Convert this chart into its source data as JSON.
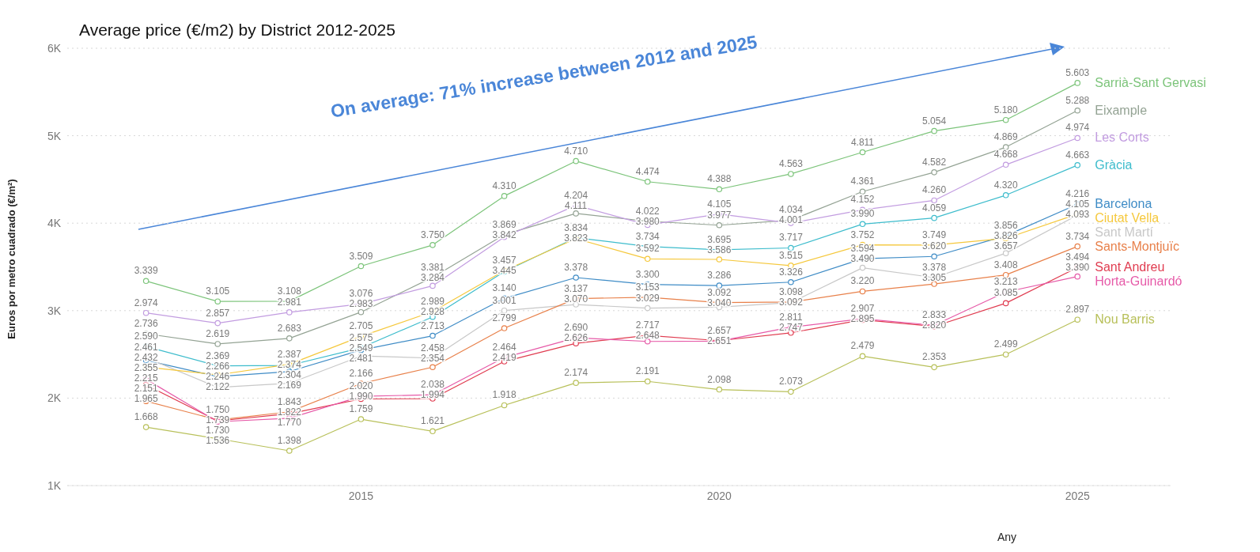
{
  "chart_data": {
    "type": "line",
    "title": "Average price (€/m2) by District 2012-2025",
    "xlabel": "Any",
    "ylabel": "Euros por metro cuadrado (€/m²)",
    "annotations": [
      "On average: 71% increase between 2012 and 2025"
    ],
    "x": [
      2012,
      2013,
      2014,
      2015,
      2016,
      2017,
      2018,
      2019,
      2020,
      2021,
      2022,
      2023,
      2024,
      2025
    ],
    "xlim": [
      2010.9,
      2026.3
    ],
    "xticks": [
      2015,
      2020,
      2025
    ],
    "ylim": [
      1000,
      6000
    ],
    "yticks": [
      {
        "value": 1000,
        "label": "1K"
      },
      {
        "value": 2000,
        "label": "2K"
      },
      {
        "value": 3000,
        "label": "3K"
      },
      {
        "value": 4000,
        "label": "4K"
      },
      {
        "value": 5000,
        "label": "5K"
      },
      {
        "value": 6000,
        "label": "6K"
      }
    ],
    "grid": "y",
    "marker": "circle",
    "line_style": "solid",
    "series": [
      {
        "name": "Sarrià-Sant Gervasi",
        "color": "#7cc47a",
        "values": [
          3339,
          3105,
          3108,
          3509,
          3750,
          4310,
          4710,
          4474,
          4388,
          4563,
          4811,
          5054,
          5180,
          5603
        ],
        "value_labels": [
          "3.339",
          "3.105",
          "3.108",
          "3.509",
          "3.750",
          "4.310",
          "4.710",
          "4.474",
          "4.388",
          "4.563",
          "4.811",
          "5.054",
          "5.180",
          "5.603"
        ]
      },
      {
        "name": "Eixample",
        "color": "#94a394",
        "values": [
          2736,
          2619,
          2683,
          2983,
          3381,
          3869,
          4111,
          4022,
          3977,
          4034,
          4361,
          4582,
          4869,
          5288
        ],
        "value_labels": [
          "2.736",
          "2.619",
          "2.683",
          "2.983",
          "3.381",
          "3.869",
          "4.111",
          "4.022",
          "3.977",
          "4.034",
          "4.361",
          "4.582",
          "4.869",
          "5.288"
        ]
      },
      {
        "name": "Les Corts",
        "color": "#c29ce0",
        "values": [
          2974,
          2857,
          2981,
          3076,
          3284,
          3842,
          4204,
          3980,
          4105,
          4001,
          4152,
          4260,
          4668,
          4974
        ],
        "value_labels": [
          "2.974",
          "2.857",
          "2.981",
          "3.076",
          "3.284",
          "3.842",
          "4.204",
          "3.980",
          "4.105",
          "4.001",
          "4.152",
          "4.260",
          "4.668",
          "4.974"
        ]
      },
      {
        "name": "Gràcia",
        "color": "#3dbccc",
        "values": [
          2590,
          2369,
          2374,
          2575,
          2928,
          3445,
          3834,
          3734,
          3695,
          3717,
          3990,
          4059,
          4320,
          4663
        ],
        "value_labels": [
          "2.590",
          "2.369",
          "2.374",
          "2.575",
          "2.928",
          "3.445",
          "3.834",
          "3.734",
          "3.695",
          "3.717",
          "3.990",
          "4.059",
          "4.320",
          "4.663"
        ]
      },
      {
        "name": "Barcelona",
        "color": "#3f8cc6",
        "values": [
          2432,
          2246,
          2304,
          2549,
          2713,
          3140,
          3378,
          3300,
          3286,
          3326,
          3594,
          3620,
          3856,
          4216
        ],
        "value_labels": [
          "2.432",
          "2.246",
          "2.304",
          "2.549",
          "2.713",
          "3.140",
          "3.378",
          "3.300",
          "3.286",
          "3.326",
          "3.594",
          "3.620",
          "3.856",
          "4.216"
        ]
      },
      {
        "name": "Sant Martí",
        "color": "#c8c8c8",
        "values": [
          2461,
          2122,
          2169,
          2481,
          2458,
          3001,
          3070,
          3029,
          3040,
          3092,
          3490,
          3378,
          3657,
          4093
        ],
        "value_labels": [
          "2.461",
          "2.122",
          "2.169",
          "2.481",
          "2.458",
          "3.001",
          "3.070",
          "3.029",
          "3.040",
          "3.092",
          "3.490",
          "3.378",
          "3.657",
          "4.093"
        ]
      },
      {
        "name": "Ciutat Vella",
        "color": "#f5c83c",
        "values": [
          2355,
          2266,
          2387,
          2705,
          2989,
          3457,
          3823,
          3592,
          3586,
          3515,
          3752,
          3749,
          3826,
          4105
        ],
        "value_labels": [
          "2.355",
          "2.266",
          "2.387",
          "2.705",
          "2.989",
          "3.457",
          "3.823",
          "3.592",
          "3.586",
          "3.515",
          "3.752",
          "3.749",
          "3.826",
          "4.105"
        ]
      },
      {
        "name": "Sants-Montjuïc",
        "color": "#e8804a",
        "values": [
          1965,
          1750,
          1843,
          2166,
          2354,
          2799,
          3137,
          3153,
          3092,
          3098,
          3220,
          3305,
          3408,
          3734
        ],
        "value_labels": [
          "1.965",
          "1.750",
          "1.843",
          "2.166",
          "2.354",
          "2.799",
          "3.137",
          "3.153",
          "3.092",
          "3.098",
          "3.220",
          "3.305",
          "3.408",
          "3.734"
        ]
      },
      {
        "name": "Sant Andreu",
        "color": "#e03c50",
        "values": [
          2151,
          1739,
          1822,
          1990,
          1994,
          2419,
          2626,
          2717,
          2657,
          2747,
          2895,
          2820,
          3085,
          3494
        ],
        "value_labels": [
          "2.151",
          "1.739",
          "1.822",
          "1.990",
          "1.994",
          "2.419",
          "2.626",
          "2.717",
          "2.657",
          "2.747",
          "2.895",
          "2.820",
          "3.085",
          "3.494"
        ]
      },
      {
        "name": "Horta-Guinardó",
        "color": "#e65aa8",
        "values": [
          2215,
          1730,
          1770,
          2020,
          2038,
          2464,
          2690,
          2648,
          2651,
          2811,
          2907,
          2833,
          3213,
          3390
        ],
        "value_labels": [
          "2.215",
          "1.730",
          "1.770",
          "2.020",
          "2.038",
          "2.464",
          "2.690",
          "2.648",
          "2.651",
          "2.811",
          "2.907",
          "2.833",
          "3.213",
          "3.390"
        ]
      },
      {
        "name": "Nou Barris",
        "color": "#b8c05a",
        "values": [
          1668,
          1536,
          1398,
          1759,
          1621,
          1918,
          2174,
          2191,
          2098,
          2073,
          2479,
          2353,
          2499,
          2897
        ],
        "value_labels": [
          "1.668",
          "1.536",
          "1.398",
          "1.759",
          "1.621",
          "1.918",
          "2.174",
          "2.191",
          "2.098",
          "2.073",
          "2.479",
          "2.353",
          "2.499",
          "2.897"
        ]
      }
    ]
  }
}
